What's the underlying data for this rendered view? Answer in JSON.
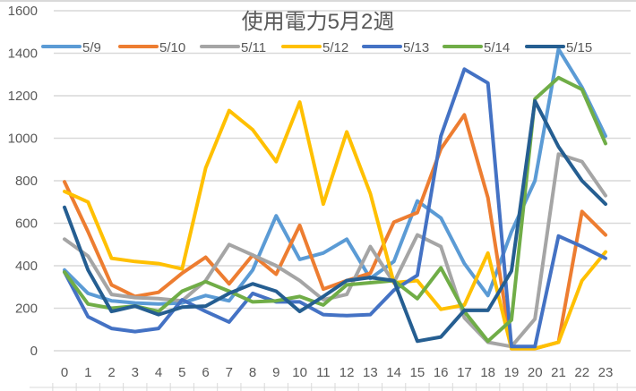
{
  "chart_data": {
    "type": "line",
    "title": "使用電力5月2週",
    "xlabel": "",
    "ylabel": "",
    "ylim": [
      0,
      1600
    ],
    "yticks": [
      0,
      200,
      400,
      600,
      800,
      1000,
      1200,
      1400,
      1600
    ],
    "x": [
      0,
      1,
      2,
      3,
      4,
      5,
      6,
      7,
      8,
      9,
      10,
      11,
      12,
      13,
      14,
      15,
      16,
      17,
      18,
      19,
      20,
      21,
      22,
      23
    ],
    "grid": true,
    "legend_position": "top",
    "series": [
      {
        "name": "5/9",
        "color": "#5B9BD5",
        "values": [
          380,
          270,
          235,
          225,
          220,
          225,
          260,
          235,
          380,
          635,
          430,
          460,
          525,
          340,
          420,
          705,
          625,
          410,
          260,
          560,
          800,
          1420,
          1240,
          1010
        ]
      },
      {
        "name": "5/10",
        "color": "#ED7D31",
        "values": [
          795,
          560,
          310,
          255,
          275,
          365,
          440,
          315,
          450,
          360,
          590,
          290,
          330,
          365,
          605,
          650,
          950,
          1110,
          720,
          10,
          10,
          40,
          655,
          545
        ]
      },
      {
        "name": "5/11",
        "color": "#A5A5A5",
        "values": [
          525,
          445,
          265,
          250,
          245,
          235,
          330,
          500,
          450,
          400,
          330,
          240,
          265,
          490,
          320,
          545,
          490,
          155,
          40,
          20,
          150,
          925,
          890,
          730
        ]
      },
      {
        "name": "5/12",
        "color": "#FFC000",
        "values": [
          750,
          700,
          435,
          420,
          410,
          385,
          860,
          1130,
          1040,
          890,
          1170,
          690,
          1030,
          740,
          320,
          330,
          195,
          215,
          460,
          10,
          10,
          40,
          330,
          465
        ]
      },
      {
        "name": "5/13",
        "color": "#4472C4",
        "values": [
          370,
          160,
          105,
          90,
          105,
          240,
          185,
          135,
          270,
          230,
          230,
          170,
          165,
          170,
          285,
          355,
          1010,
          1325,
          1260,
          20,
          20,
          540,
          490,
          435
        ]
      },
      {
        "name": "5/14",
        "color": "#70AD47",
        "values": [
          370,
          220,
          200,
          210,
          185,
          280,
          325,
          280,
          230,
          235,
          255,
          215,
          310,
          320,
          330,
          245,
          390,
          185,
          45,
          145,
          1185,
          1285,
          1230,
          975
        ]
      },
      {
        "name": "5/15",
        "color": "#255E91",
        "values": [
          675,
          380,
          185,
          210,
          170,
          205,
          210,
          270,
          315,
          280,
          185,
          255,
          330,
          345,
          330,
          45,
          65,
          190,
          190,
          375,
          1175,
          960,
          800,
          690
        ]
      }
    ]
  }
}
